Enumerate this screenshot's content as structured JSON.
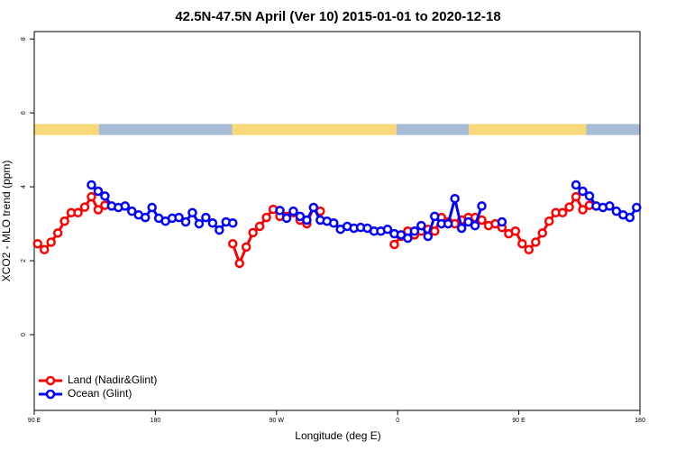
{
  "chart_data": {
    "type": "line",
    "title": "42.5N-47.5N April (Ver 10)   2015-01-01 to 2020-12-18",
    "x_label": "Longitude (deg E)",
    "y_label": "XCO2 - MLO trend (ppm)",
    "xlim": [
      90,
      540
    ],
    "ylim": [
      -2.05,
      8.2
    ],
    "xticks": [
      {
        "value": 90,
        "label": "90 E"
      },
      180,
      {
        "value": 270,
        "label": "90 W"
      },
      {
        "value": 360,
        "label": "0"
      },
      {
        "value": 450,
        "label": "90 E"
      },
      {
        "value": 540,
        "label": "180"
      }
    ],
    "yticks": [
      0,
      2,
      4,
      6,
      8
    ],
    "legend": "bottom-left",
    "x": [
      92.5,
      97.5,
      102.5,
      107.5,
      112.5,
      117.5,
      122.5,
      127.5,
      132.5,
      137.5,
      142.5,
      147.5,
      152.5,
      157.5,
      162.5,
      167.5,
      172.5,
      177.5,
      182.5,
      187.5,
      192.5,
      197.5,
      202.5,
      207.5,
      212.5,
      217.5,
      222.5,
      227.5,
      232.5,
      237.5,
      242.5,
      247.5,
      252.5,
      257.5,
      262.5,
      267.5,
      272.5,
      277.5,
      282.5,
      287.5,
      292.5,
      297.5,
      302.5,
      307.5,
      312.5,
      317.5,
      322.5,
      327.5,
      332.5,
      337.5,
      342.5,
      347.5,
      352.5,
      357.5,
      362.5,
      367.5,
      372.5,
      377.5,
      382.5,
      387.5,
      392.5,
      397.5,
      402.5,
      407.5,
      412.5,
      417.5,
      422.5,
      427.5,
      432.5,
      437.5,
      442.5,
      447.5,
      452.5,
      457.5,
      462.5,
      467.5,
      472.5,
      477.5,
      482.5,
      487.5,
      492.5,
      497.5,
      502.5,
      507.5,
      512.5,
      517.5,
      522.5,
      527.5,
      532.5,
      537.5
    ],
    "series": [
      {
        "name": "Land (Nadir&Glint)",
        "color": "#ff0000",
        "values": [
          2.46,
          2.3,
          2.5,
          2.75,
          3.07,
          3.3,
          3.3,
          3.45,
          3.73,
          3.38,
          3.5,
          null,
          null,
          null,
          null,
          null,
          null,
          null,
          null,
          null,
          null,
          null,
          null,
          null,
          null,
          null,
          null,
          null,
          null,
          2.46,
          1.93,
          2.37,
          2.76,
          2.93,
          3.17,
          3.39,
          3.2,
          3.2,
          3.3,
          3.1,
          3.0,
          3.44,
          3.34,
          null,
          null,
          null,
          null,
          null,
          null,
          null,
          null,
          null,
          null,
          2.44,
          2.66,
          2.8,
          2.7,
          2.8,
          2.85,
          2.8,
          3.17,
          3.05,
          3.0,
          3.1,
          3.17,
          3.17,
          3.1,
          2.95,
          3.0,
          2.9,
          2.73,
          2.8,
          2.46,
          2.3,
          2.5,
          2.75,
          3.07,
          3.3,
          3.3,
          3.45,
          3.73,
          3.38,
          3.5,
          null,
          null,
          null,
          null,
          null,
          null,
          null
        ]
      },
      {
        "name": "Ocean (Glint)",
        "color": "#0000ff",
        "values": [
          null,
          null,
          null,
          null,
          null,
          null,
          null,
          null,
          4.05,
          3.88,
          3.75,
          3.48,
          3.44,
          3.48,
          3.34,
          3.24,
          3.17,
          3.44,
          3.15,
          3.07,
          3.15,
          3.17,
          3.05,
          3.3,
          3.0,
          3.17,
          3.02,
          2.83,
          3.05,
          3.02,
          null,
          null,
          null,
          null,
          null,
          null,
          3.36,
          3.15,
          3.34,
          3.2,
          3.1,
          3.44,
          3.1,
          3.07,
          3.02,
          2.85,
          2.93,
          2.88,
          2.9,
          2.88,
          2.8,
          2.8,
          2.85,
          2.73,
          2.7,
          2.61,
          2.8,
          2.95,
          2.66,
          3.2,
          3.0,
          3.0,
          3.68,
          2.88,
          3.05,
          2.95,
          3.48,
          null,
          null,
          3.05,
          null,
          null,
          null,
          null,
          null,
          null,
          null,
          null,
          null,
          null,
          4.05,
          3.88,
          3.75,
          3.48,
          3.44,
          3.48,
          3.34,
          3.24,
          3.17,
          3.44
        ]
      }
    ],
    "surface_strip": {
      "ylim": [
        5.4,
        5.7
      ],
      "segments": [
        {
          "from": 90,
          "to": 138,
          "color": "#f8d878"
        },
        {
          "from": 138,
          "to": 237,
          "color": "#a8bcd8"
        },
        {
          "from": 237,
          "to": 359,
          "color": "#f8d878"
        },
        {
          "from": 359,
          "to": 413,
          "color": "#a8bcd8"
        },
        {
          "from": 413,
          "to": 500,
          "color": "#f8d878"
        },
        {
          "from": 500,
          "to": 540,
          "color": "#a8bcd8"
        }
      ]
    }
  }
}
